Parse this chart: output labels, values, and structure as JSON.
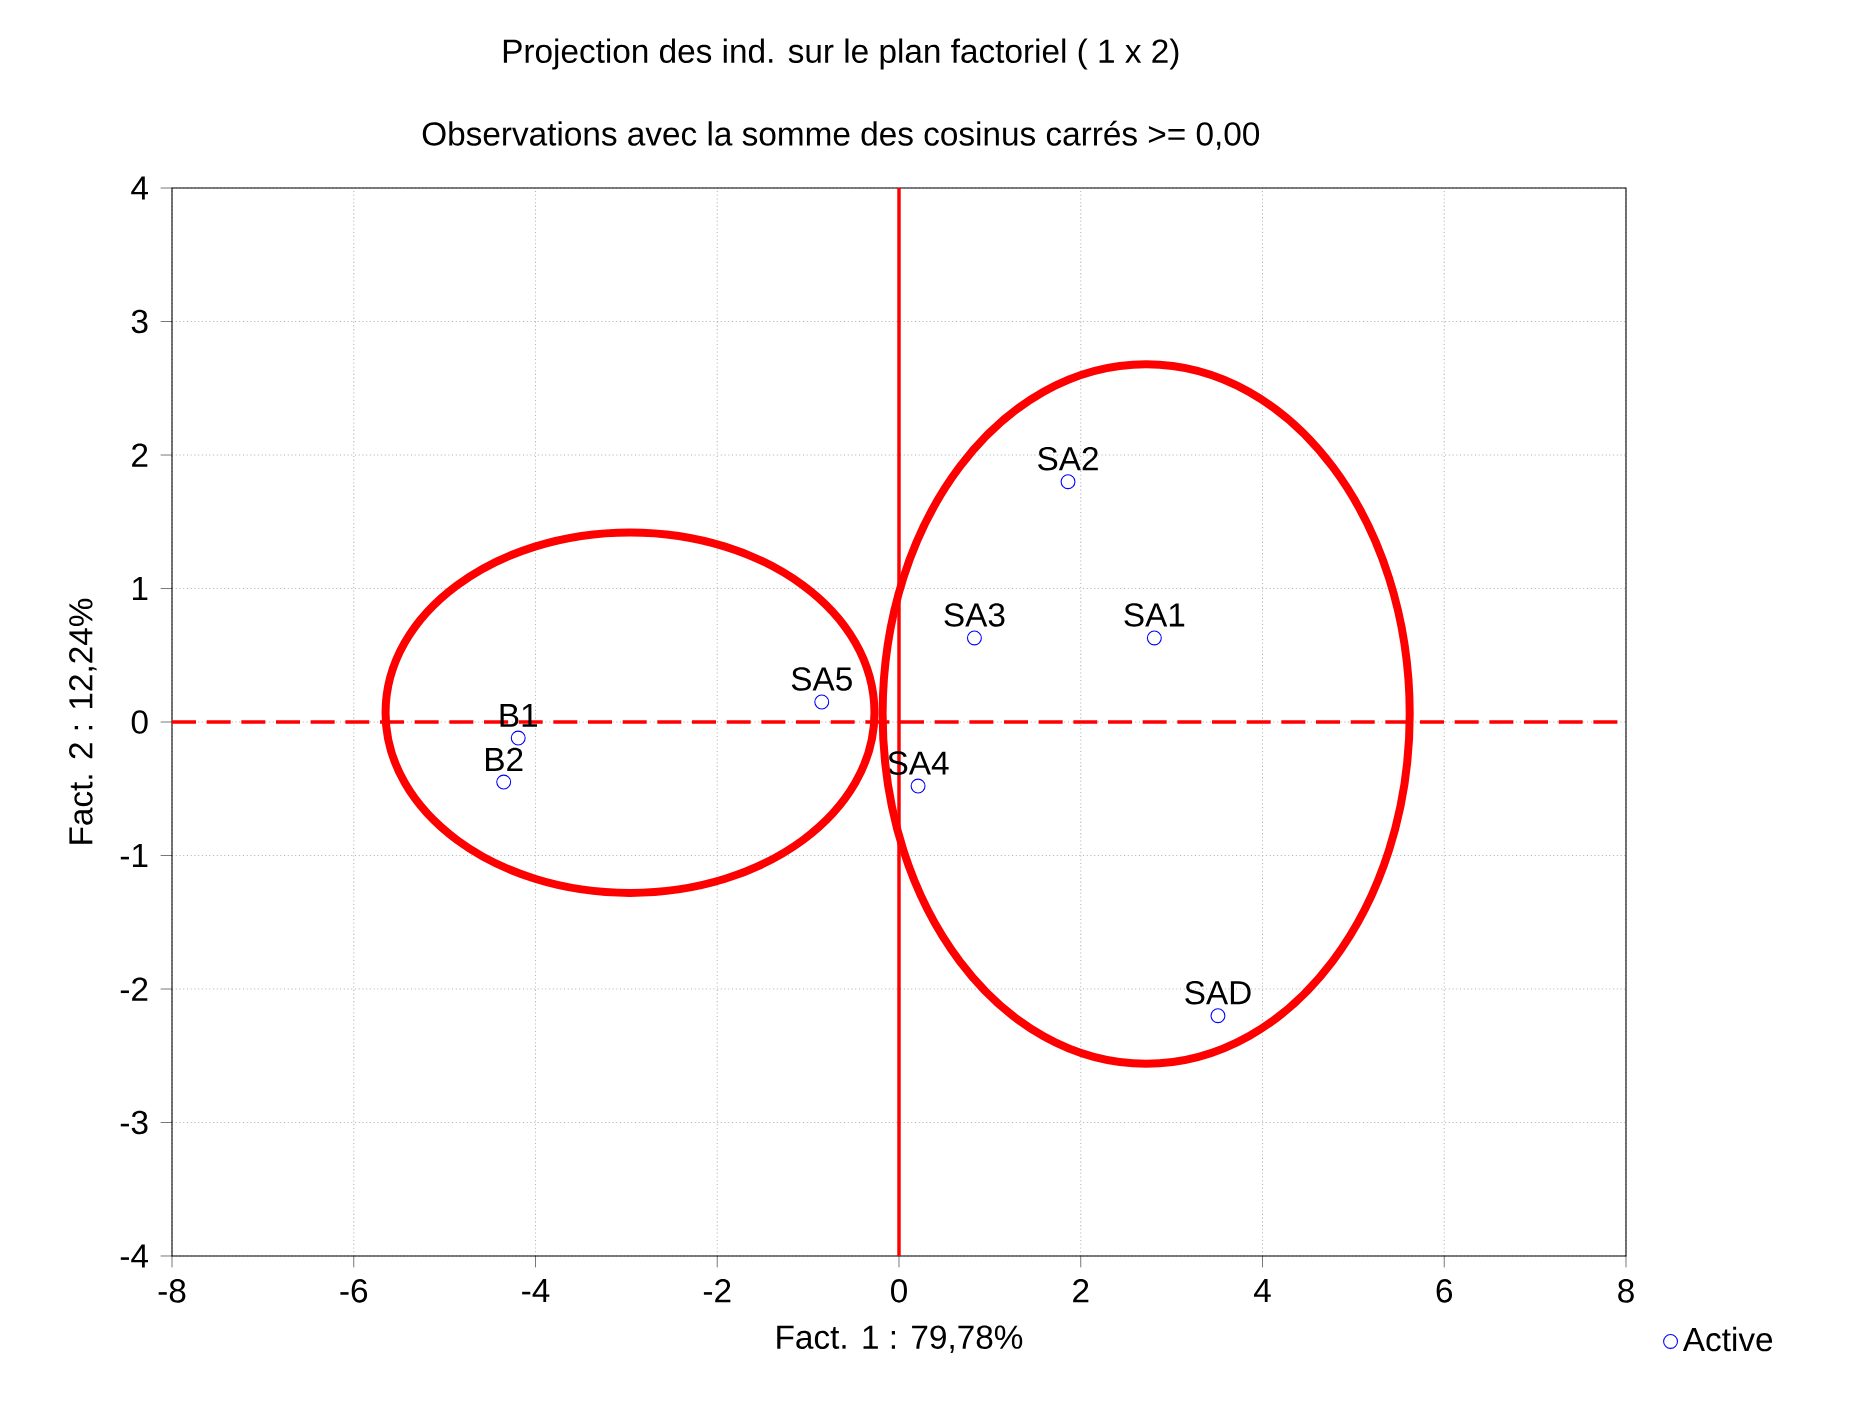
{
  "chart_data": {
    "type": "scatter",
    "title": "Projection des ind. sur le plan factoriel (  1 x   2)",
    "subtitle": "Observations avec la somme des cosinus carrés >=  0,00",
    "xlabel": "Fact. 1 : 79,78%",
    "ylabel": "Fact. 2 : 12,24%",
    "series": [
      {
        "name": "Active",
        "color": "#0000ff",
        "x": [
          -4.19,
          -4.35,
          -0.85,
          0.21,
          0.83,
          1.86,
          2.81,
          3.51
        ],
        "values": [
          -0.12,
          -0.45,
          0.15,
          -0.48,
          0.63,
          1.8,
          0.63,
          -2.2
        ]
      }
    ],
    "annotations": [
      {
        "text": "B1",
        "x": -4.19,
        "y": -0.12
      },
      {
        "text": "B2",
        "x": -4.35,
        "y": -0.45
      },
      {
        "text": "SA5",
        "x": -0.85,
        "y": 0.15
      },
      {
        "text": "SA4",
        "x": 0.21,
        "y": -0.48
      },
      {
        "text": "SA3",
        "x": 0.83,
        "y": 0.63
      },
      {
        "text": "SA2",
        "x": 1.86,
        "y": 1.8
      },
      {
        "text": "SA1",
        "x": 2.81,
        "y": 0.63
      },
      {
        "text": "SAD",
        "x": 3.51,
        "y": -2.2
      }
    ],
    "ref_lines": [
      {
        "axis": "x",
        "value": 0,
        "color": "#ff0000"
      },
      {
        "axis": "y",
        "value": 0,
        "color": "#ff0000",
        "line_style": "dashed"
      }
    ],
    "xlim": [
      -8,
      8
    ],
    "ylim": [
      -4,
      4
    ],
    "xticks": [
      -8,
      -6,
      -4,
      -2,
      0,
      2,
      4,
      6,
      8
    ],
    "yticks": [
      -4,
      -3,
      -2,
      -1,
      0,
      1,
      2,
      3,
      4
    ],
    "grid": true,
    "legend": "bottom right",
    "marker": "circle"
  }
}
